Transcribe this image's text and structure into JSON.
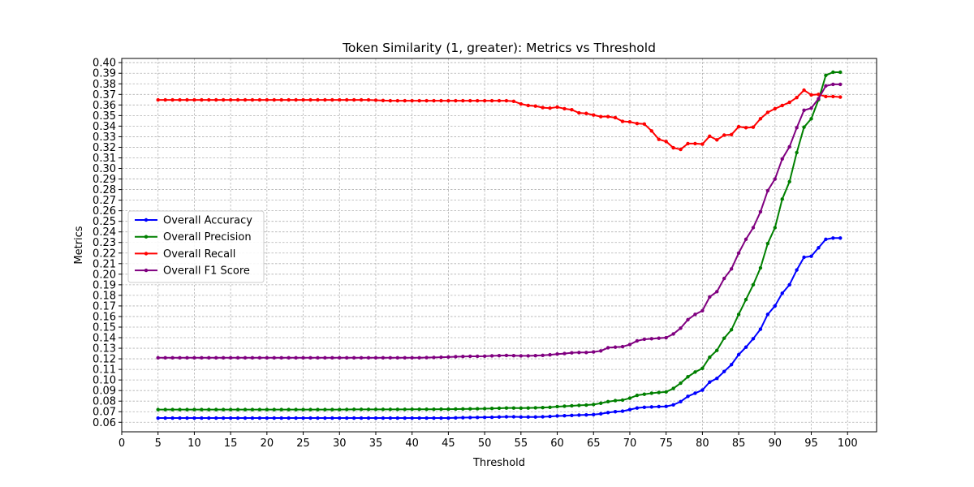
{
  "chart_data": {
    "type": "line",
    "title": "Token Similarity (1, greater): Metrics vs Threshold",
    "xlabel": "Threshold",
    "ylabel": "Metrics",
    "xlim": [
      0,
      104
    ],
    "ylim": [
      0.051,
      0.404
    ],
    "xticks": [
      0,
      5,
      10,
      15,
      20,
      25,
      30,
      35,
      40,
      45,
      50,
      55,
      60,
      65,
      70,
      75,
      80,
      85,
      90,
      95,
      100
    ],
    "yticks": [
      0.06,
      0.07,
      0.08,
      0.09,
      0.1,
      0.11,
      0.12,
      0.13,
      0.14,
      0.15,
      0.16,
      0.17,
      0.18,
      0.19,
      0.2,
      0.21,
      0.22,
      0.23,
      0.24,
      0.25,
      0.26,
      0.27,
      0.28,
      0.29,
      0.3,
      0.31,
      0.32,
      0.33,
      0.34,
      0.35,
      0.36,
      0.37,
      0.38,
      0.39,
      0.4
    ],
    "grid": true,
    "legend_position": "center-left",
    "x": [
      5,
      6,
      7,
      8,
      9,
      10,
      11,
      12,
      13,
      14,
      15,
      16,
      17,
      18,
      19,
      20,
      21,
      22,
      23,
      24,
      25,
      26,
      27,
      28,
      29,
      30,
      31,
      32,
      33,
      34,
      35,
      36,
      37,
      38,
      39,
      40,
      41,
      42,
      43,
      44,
      45,
      46,
      47,
      48,
      49,
      50,
      51,
      52,
      53,
      54,
      55,
      56,
      57,
      58,
      59,
      60,
      61,
      62,
      63,
      64,
      65,
      66,
      67,
      68,
      69,
      70,
      71,
      72,
      73,
      74,
      75,
      76,
      77,
      78,
      79,
      80,
      81,
      82,
      83,
      84,
      85,
      86,
      87,
      88,
      89,
      90,
      91,
      92,
      93,
      94,
      95,
      96,
      97,
      98,
      99
    ],
    "series": [
      {
        "name": "Overall Accuracy",
        "color": "#0000ff",
        "values": [
          0.064,
          0.064,
          0.064,
          0.064,
          0.064,
          0.064,
          0.064,
          0.064,
          0.064,
          0.064,
          0.064,
          0.064,
          0.064,
          0.064,
          0.064,
          0.064,
          0.064,
          0.064,
          0.064,
          0.064,
          0.064,
          0.064,
          0.064,
          0.064,
          0.064,
          0.064,
          0.064,
          0.064,
          0.064,
          0.064,
          0.064,
          0.064,
          0.064,
          0.064,
          0.064,
          0.064,
          0.064,
          0.064,
          0.064,
          0.064,
          0.064,
          0.0642,
          0.0644,
          0.0645,
          0.0646,
          0.0647,
          0.0648,
          0.065,
          0.0652,
          0.0652,
          0.065,
          0.065,
          0.065,
          0.0652,
          0.0655,
          0.066,
          0.0662,
          0.0665,
          0.0668,
          0.067,
          0.0673,
          0.068,
          0.0692,
          0.07,
          0.0705,
          0.072,
          0.0735,
          0.0742,
          0.0745,
          0.0748,
          0.075,
          0.0765,
          0.0795,
          0.0845,
          0.0875,
          0.0905,
          0.098,
          0.1015,
          0.108,
          0.1145,
          0.124,
          0.131,
          0.139,
          0.148,
          0.162,
          0.17,
          0.182,
          0.19,
          0.204,
          0.216,
          0.217,
          0.225,
          0.233,
          0.2342,
          0.2342
        ]
      },
      {
        "name": "Overall Precision",
        "color": "#008000",
        "values": [
          0.072,
          0.072,
          0.072,
          0.072,
          0.072,
          0.072,
          0.072,
          0.072,
          0.072,
          0.072,
          0.072,
          0.072,
          0.072,
          0.072,
          0.072,
          0.072,
          0.072,
          0.072,
          0.072,
          0.072,
          0.072,
          0.072,
          0.072,
          0.072,
          0.072,
          0.072,
          0.0721,
          0.0722,
          0.0722,
          0.0722,
          0.0722,
          0.0722,
          0.0722,
          0.0722,
          0.0722,
          0.0723,
          0.0723,
          0.0723,
          0.0723,
          0.0724,
          0.0724,
          0.0725,
          0.0726,
          0.0727,
          0.0728,
          0.0729,
          0.0731,
          0.0733,
          0.0735,
          0.0735,
          0.0734,
          0.0735,
          0.0737,
          0.0739,
          0.0742,
          0.0748,
          0.0752,
          0.0756,
          0.076,
          0.0763,
          0.0768,
          0.078,
          0.0795,
          0.0805,
          0.081,
          0.0828,
          0.0855,
          0.0865,
          0.0875,
          0.0882,
          0.0887,
          0.092,
          0.097,
          0.103,
          0.1075,
          0.111,
          0.1215,
          0.128,
          0.1395,
          0.1475,
          0.162,
          0.176,
          0.19,
          0.206,
          0.229,
          0.244,
          0.271,
          0.2875,
          0.315,
          0.339,
          0.347,
          0.365,
          0.388,
          0.391,
          0.391
        ]
      },
      {
        "name": "Overall Recall",
        "color": "#ff0000",
        "values": [
          0.3648,
          0.3648,
          0.3648,
          0.3648,
          0.3648,
          0.3648,
          0.3648,
          0.3648,
          0.3648,
          0.3648,
          0.3648,
          0.3648,
          0.3648,
          0.3648,
          0.3648,
          0.3648,
          0.3648,
          0.3648,
          0.3648,
          0.3648,
          0.3648,
          0.3648,
          0.3648,
          0.3648,
          0.3648,
          0.3648,
          0.3648,
          0.3648,
          0.3648,
          0.3648,
          0.3645,
          0.3642,
          0.364,
          0.364,
          0.364,
          0.364,
          0.364,
          0.364,
          0.364,
          0.364,
          0.364,
          0.364,
          0.364,
          0.364,
          0.364,
          0.364,
          0.364,
          0.364,
          0.364,
          0.3635,
          0.361,
          0.3595,
          0.359,
          0.3575,
          0.357,
          0.358,
          0.3565,
          0.3555,
          0.3525,
          0.352,
          0.3505,
          0.349,
          0.349,
          0.348,
          0.3445,
          0.344,
          0.3425,
          0.342,
          0.3355,
          0.3275,
          0.3255,
          0.3195,
          0.318,
          0.3235,
          0.3235,
          0.323,
          0.3305,
          0.327,
          0.3315,
          0.332,
          0.3395,
          0.3385,
          0.339,
          0.347,
          0.353,
          0.3565,
          0.3595,
          0.3625,
          0.367,
          0.374,
          0.3695,
          0.37,
          0.368,
          0.368,
          0.3675
        ]
      },
      {
        "name": "Overall F1 Score",
        "color": "#800080",
        "values": [
          0.121,
          0.121,
          0.121,
          0.121,
          0.121,
          0.121,
          0.121,
          0.121,
          0.121,
          0.121,
          0.121,
          0.121,
          0.121,
          0.121,
          0.121,
          0.121,
          0.121,
          0.121,
          0.121,
          0.121,
          0.121,
          0.121,
          0.121,
          0.121,
          0.121,
          0.121,
          0.121,
          0.121,
          0.121,
          0.121,
          0.121,
          0.121,
          0.121,
          0.121,
          0.121,
          0.121,
          0.121,
          0.1212,
          0.1213,
          0.1215,
          0.1217,
          0.122,
          0.1222,
          0.1224,
          0.1224,
          0.1225,
          0.1228,
          0.123,
          0.1232,
          0.123,
          0.1228,
          0.1228,
          0.123,
          0.1233,
          0.1238,
          0.1245,
          0.125,
          0.1257,
          0.126,
          0.126,
          0.1265,
          0.1275,
          0.1305,
          0.131,
          0.1315,
          0.1335,
          0.137,
          0.1385,
          0.139,
          0.1395,
          0.14,
          0.1435,
          0.149,
          0.157,
          0.162,
          0.1655,
          0.1785,
          0.1835,
          0.196,
          0.205,
          0.22,
          0.233,
          0.244,
          0.259,
          0.279,
          0.29,
          0.309,
          0.3205,
          0.3385,
          0.355,
          0.357,
          0.366,
          0.378,
          0.3795,
          0.3795
        ]
      }
    ]
  }
}
